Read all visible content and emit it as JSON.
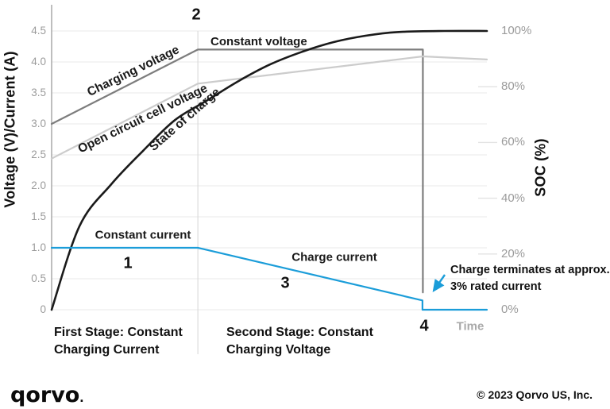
{
  "chart": {
    "marker_1": "1",
    "marker_2": "2",
    "marker_3": "3",
    "marker_4": "4",
    "label_constant_voltage": "Constant voltage",
    "label_charging_voltage": "Charging voltage",
    "label_open_circuit": "Open circuit cell voltage",
    "label_state_of_charge": "State of charge",
    "label_constant_current": "Constant current",
    "label_charge_current": "Charge current",
    "left_axis_title": "Voltage (V)/Current (A)",
    "right_axis_title": "SOC (%)",
    "time_label": "Time"
  },
  "annotation": {
    "line1": "Charge terminates at approx.",
    "line2": "3% rated current",
    "arrow_color": "#1b9dd9"
  },
  "stages": {
    "first": [
      "First Stage: Constant",
      "Charging Current"
    ],
    "second": [
      "Second Stage: Constant",
      "Charging Voltage"
    ]
  },
  "footer": {
    "logo_text": "qorvo",
    "logo_mark": ".",
    "copyright": "© 2023 Qorvo US, Inc."
  },
  "chart_data": {
    "type": "line",
    "x_label": "Time",
    "x_note": "x values normalized 0-1; no numeric time units shown in figure",
    "grid": "horizontal gridlines at every 0.5 V of left axis",
    "left_axis": {
      "title": "Voltage (V)/Current (A)",
      "range": [
        0,
        4.5
      ],
      "ticks": [
        "4.5",
        "4.0",
        "3.5",
        "3.0",
        "2.5",
        "2.0",
        "1.5",
        "1.0",
        "0.5",
        "0"
      ]
    },
    "right_axis": {
      "title": "SOC (%)",
      "range": [
        0,
        100
      ],
      "ticks": [
        "100%",
        "80%",
        "60%",
        "40%",
        "20%",
        "0%"
      ]
    },
    "stage_divider_x": 0.336,
    "charge_termination_x": 0.853,
    "series": [
      {
        "name": "Charging voltage",
        "axis": "left",
        "color": "#7d7d7d",
        "points": [
          [
            0,
            3.0
          ],
          [
            0.336,
            4.2
          ],
          [
            0.853,
            4.2
          ],
          [
            0.853,
            0.28
          ]
        ]
      },
      {
        "name": "Open circuit cell voltage",
        "axis": "left",
        "color": "#cccccc",
        "points": [
          [
            0,
            2.44
          ],
          [
            0.336,
            3.65
          ],
          [
            0.853,
            4.09
          ],
          [
            1,
            4.04
          ]
        ]
      },
      {
        "name": "State of charge",
        "axis": "right",
        "color": "#1a1a1a",
        "smooth": true,
        "points": [
          [
            0,
            0
          ],
          [
            0.064,
            30
          ],
          [
            0.137,
            45
          ],
          [
            0.21,
            57
          ],
          [
            0.283,
            68
          ],
          [
            0.356,
            75
          ],
          [
            0.429,
            82
          ],
          [
            0.502,
            88
          ],
          [
            0.575,
            92.5
          ],
          [
            0.648,
            96
          ],
          [
            0.721,
            98.3
          ],
          [
            0.794,
            99.6
          ],
          [
            0.903,
            100
          ],
          [
            1,
            100
          ]
        ]
      },
      {
        "name": "Charge current",
        "axis": "left",
        "color": "#1b9dd9",
        "points": [
          [
            0,
            1.0
          ],
          [
            0.336,
            1.0
          ],
          [
            0.852,
            0.15
          ],
          [
            0.852,
            0
          ],
          [
            1,
            0
          ]
        ]
      }
    ]
  }
}
